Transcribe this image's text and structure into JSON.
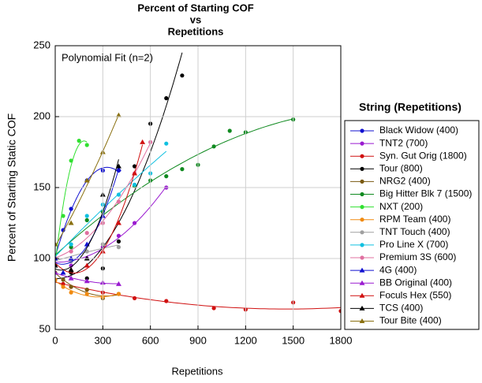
{
  "chart_data": {
    "type": "scatter",
    "title": "Percent of Starting COF",
    "title_line2": "vs",
    "title_line3": "Repetitions",
    "x_label": "Repetitions",
    "y_label": "Percent of Starting Static COF",
    "annotation": "Polynomial Fit (n=2)",
    "legend_title": "String (Repetitions)",
    "xlim": [
      0,
      1800
    ],
    "xticks": [
      0,
      300,
      600,
      900,
      1200,
      1500,
      1800
    ],
    "ylim": [
      50,
      250
    ],
    "yticks": [
      50,
      100,
      150,
      200,
      250
    ],
    "grid": true,
    "series": [
      {
        "name": "Black Widow (400)",
        "color": "#1010d0",
        "marker": "circle",
        "x": [
          0,
          50,
          100,
          200,
          300,
          400
        ],
        "values": [
          100,
          120,
          135,
          155,
          162,
          162
        ]
      },
      {
        "name": "TNT2 (700)",
        "color": "#9a1ad0",
        "marker": "circle",
        "x": [
          0,
          100,
          200,
          300,
          400,
          500,
          700
        ],
        "values": [
          100,
          95,
          100,
          108,
          116,
          125,
          150
        ]
      },
      {
        "name": "Syn. Gut Orig (1800)",
        "color": "#d01010",
        "marker": "circle",
        "x": [
          0,
          50,
          100,
          200,
          300,
          500,
          700,
          1000,
          1200,
          1500,
          1800
        ],
        "values": [
          85,
          82,
          80,
          78,
          76,
          72,
          70,
          65,
          64,
          69,
          63
        ]
      },
      {
        "name": "Tour (800)",
        "color": "#000000",
        "marker": "circle",
        "x": [
          0,
          100,
          200,
          300,
          400,
          500,
          600,
          700,
          800
        ],
        "values": [
          95,
          90,
          86,
          93,
          112,
          165,
          195,
          213,
          229
        ]
      },
      {
        "name": "NRG2 (400)",
        "color": "#7a5a10",
        "marker": "circle",
        "x": [
          0,
          50,
          100,
          200,
          300,
          400
        ],
        "values": [
          90,
          85,
          80,
          78,
          72,
          75
        ]
      },
      {
        "name": "Big Hitter Blk 7 (1500)",
        "color": "#108a20",
        "marker": "circle",
        "x": [
          0,
          100,
          200,
          300,
          400,
          500,
          600,
          700,
          800,
          900,
          1000,
          1100,
          1200,
          1500
        ],
        "values": [
          100,
          108,
          127,
          133,
          140,
          151,
          155,
          158,
          163,
          166,
          179,
          190,
          189,
          198
        ]
      },
      {
        "name": "NXT (200)",
        "color": "#30e030",
        "marker": "circle",
        "x": [
          0,
          50,
          100,
          150,
          200
        ],
        "values": [
          100,
          130,
          169,
          183,
          180
        ]
      },
      {
        "name": "RPM Team (400)",
        "color": "#f08a10",
        "marker": "circle",
        "x": [
          0,
          50,
          100,
          200,
          300,
          400
        ],
        "values": [
          85,
          80,
          76,
          75,
          73,
          75
        ]
      },
      {
        "name": "TNT Touch (400)",
        "color": "#a0a0a0",
        "marker": "circle",
        "x": [
          0,
          100,
          200,
          300,
          400
        ],
        "values": [
          100,
          98,
          105,
          110,
          108
        ]
      },
      {
        "name": "Pro Line X (700)",
        "color": "#10c0e0",
        "marker": "circle",
        "x": [
          0,
          100,
          200,
          300,
          400,
          500,
          600,
          700
        ],
        "values": [
          100,
          110,
          130,
          138,
          145,
          152,
          160,
          181
        ]
      },
      {
        "name": "Premium 3S (600)",
        "color": "#e070a0",
        "marker": "circle",
        "x": [
          0,
          100,
          200,
          300,
          400,
          500,
          600
        ],
        "values": [
          100,
          105,
          118,
          125,
          140,
          160,
          182
        ]
      },
      {
        "name": "4G (400)",
        "color": "#1010d0",
        "marker": "triangle",
        "x": [
          0,
          50,
          100,
          200,
          300,
          400
        ],
        "values": [
          100,
          90,
          100,
          110,
          130,
          163
        ]
      },
      {
        "name": "BB Original (400)",
        "color": "#9a1ad0",
        "marker": "triangle",
        "x": [
          0,
          100,
          200,
          300,
          400
        ],
        "values": [
          90,
          86,
          84,
          83,
          82
        ]
      },
      {
        "name": "Foculs Hex (550)",
        "color": "#d01010",
        "marker": "triangle",
        "x": [
          0,
          100,
          200,
          300,
          400,
          500,
          550
        ],
        "values": [
          95,
          92,
          95,
          105,
          125,
          160,
          182
        ]
      },
      {
        "name": "TCS (400)",
        "color": "#000000",
        "marker": "triangle",
        "x": [
          0,
          100,
          200,
          300,
          400
        ],
        "values": [
          95,
          92,
          100,
          145,
          165
        ]
      },
      {
        "name": "Tour Bite (400)",
        "color": "#8a7010",
        "marker": "triangle",
        "x": [
          0,
          100,
          200,
          300,
          400
        ],
        "values": [
          110,
          125,
          155,
          175,
          201
        ]
      }
    ]
  }
}
